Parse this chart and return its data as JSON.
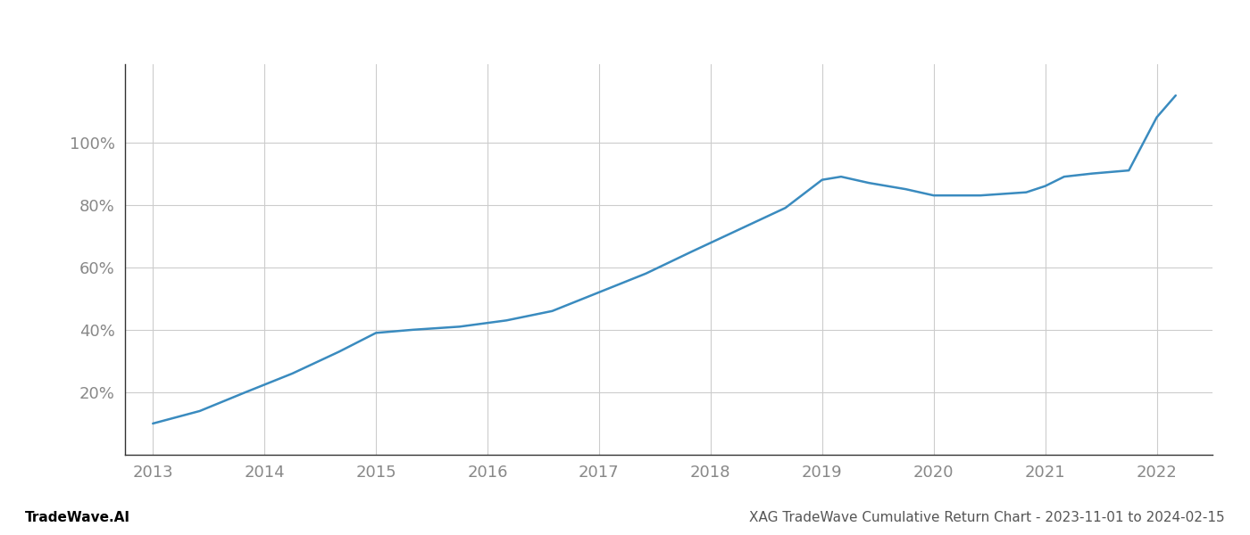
{
  "title": "",
  "xlabel": "",
  "ylabel": "",
  "footer_left": "TradeWave.AI",
  "footer_right": "XAG TradeWave Cumulative Return Chart - 2023-11-01 to 2024-02-15",
  "line_color": "#3a8bbf",
  "background_color": "#ffffff",
  "grid_color": "#cccccc",
  "x_values": [
    2013.0,
    2013.42,
    2013.83,
    2014.25,
    2014.67,
    2015.0,
    2015.33,
    2015.75,
    2016.17,
    2016.58,
    2017.0,
    2017.42,
    2017.83,
    2018.25,
    2018.67,
    2019.0,
    2019.17,
    2019.42,
    2019.75,
    2020.0,
    2020.42,
    2020.83,
    2021.0,
    2021.17,
    2021.42,
    2021.75,
    2022.0,
    2022.17
  ],
  "y_values": [
    10,
    14,
    20,
    26,
    33,
    39,
    40,
    41,
    43,
    46,
    52,
    58,
    65,
    72,
    79,
    88,
    89,
    87,
    85,
    83,
    83,
    84,
    86,
    89,
    90,
    91,
    108,
    115
  ],
  "yticks": [
    20,
    40,
    60,
    80,
    100
  ],
  "xticks": [
    2013,
    2014,
    2015,
    2016,
    2017,
    2018,
    2019,
    2020,
    2021,
    2022
  ],
  "ylim": [
    0,
    125
  ],
  "xlim": [
    2012.75,
    2022.5
  ],
  "tick_label_color": "#888888",
  "footer_left_color": "#000000",
  "footer_right_color": "#555555",
  "line_width": 1.8,
  "footer_fontsize": 11,
  "tick_fontsize": 13
}
